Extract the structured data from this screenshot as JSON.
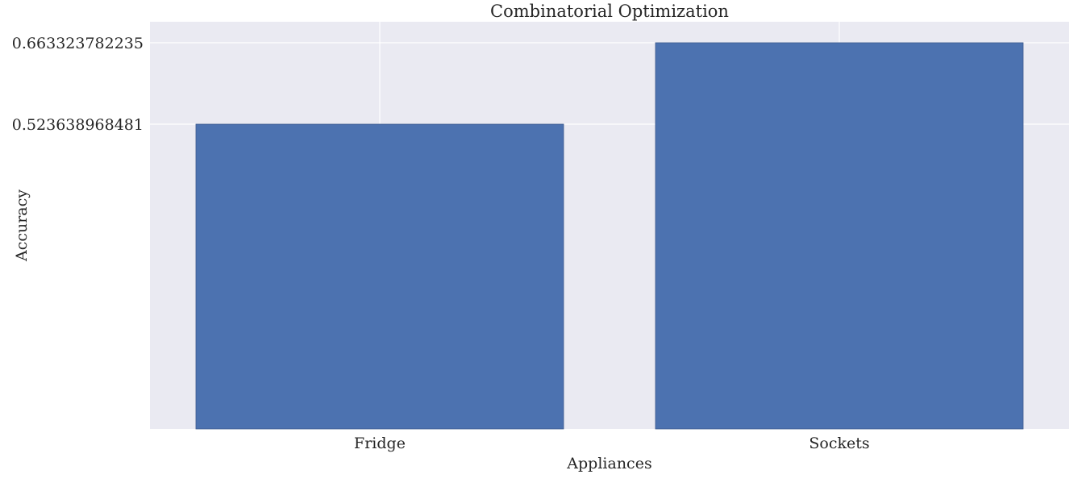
{
  "chart_data": {
    "type": "bar",
    "title": "Combinatorial Optimization",
    "xlabel": "Appliances",
    "ylabel": "Accuracy",
    "categories": [
      "Fridge",
      "Sockets"
    ],
    "values": [
      0.523638968481,
      0.663323782235
    ],
    "yticks": [
      0.523638968481,
      0.663323782235
    ],
    "ytick_labels": [
      "0.523638968481",
      "0.663323782235"
    ],
    "ylim": [
      0,
      0.7
    ],
    "grid": true,
    "legend": "none",
    "colors": {
      "background": "#eaeaf2",
      "bar": "#4c72b0",
      "bar_edge": "#3c5a8c",
      "grid": "#ffffff"
    }
  }
}
